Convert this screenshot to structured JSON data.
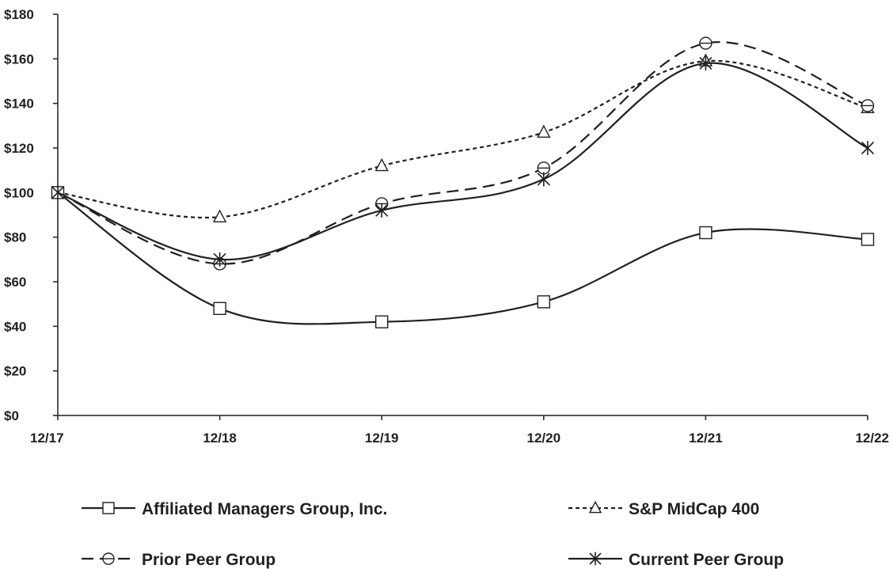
{
  "chart_data": {
    "type": "line",
    "title": "",
    "xlabel": "",
    "ylabel": "",
    "x": [
      "12/17",
      "12/18",
      "12/19",
      "12/20",
      "12/21",
      "12/22"
    ],
    "ylim": [
      0,
      180
    ],
    "yticks": [
      "$0",
      "$20",
      "$40",
      "$60",
      "$80",
      "$100",
      "$120",
      "$140",
      "$160",
      "$180"
    ],
    "grid": false,
    "legend_placement": "bottom",
    "series": [
      {
        "name": "Affiliated Managers Group, Inc.",
        "values": [
          100,
          48,
          42,
          51,
          82,
          79
        ],
        "marker": "square",
        "dash": "solid",
        "color": "#231f20"
      },
      {
        "name": "S&P MidCap 400",
        "values": [
          100,
          89,
          112,
          127,
          159,
          138
        ],
        "marker": "triangle",
        "dash": "dotted",
        "color": "#231f20"
      },
      {
        "name": "Prior Peer Group",
        "values": [
          100,
          68,
          95,
          111,
          167,
          139
        ],
        "marker": "circle",
        "dash": "dashed",
        "color": "#231f20"
      },
      {
        "name": "Current Peer Group",
        "values": [
          100,
          70,
          92,
          106,
          158,
          120
        ],
        "marker": "asterisk",
        "dash": "solid",
        "color": "#231f20"
      }
    ]
  }
}
